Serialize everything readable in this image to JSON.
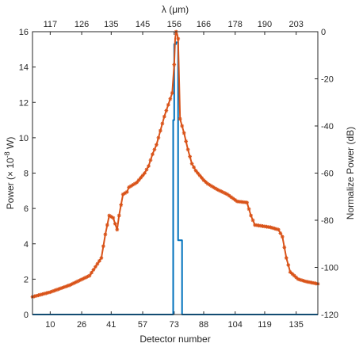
{
  "chart_data": {
    "type": "line",
    "title": "",
    "xlabel": "Detector number",
    "ylabel_left_text": "Power (× 10",
    "ylabel_left_sup": "-8",
    "ylabel_left_unit": " W)",
    "ylabel_right": "Normalize Power (dB)",
    "xlabel_top": "λ (μm)",
    "xlim": [
      1,
      146
    ],
    "ylim_left": [
      0,
      16
    ],
    "ylim_right": [
      -120,
      0
    ],
    "xticks": [
      "10",
      "26",
      "41",
      "57",
      "73",
      "88",
      "104",
      "119",
      "135"
    ],
    "xticks_values": [
      10,
      26,
      41,
      57,
      73,
      88,
      104,
      119,
      135
    ],
    "top_ticks": [
      "117",
      "126",
      "135",
      "145",
      "156",
      "166",
      "178",
      "190",
      "203"
    ],
    "yticks_left": [
      "0",
      "2",
      "4",
      "6",
      "8",
      "10",
      "12",
      "14",
      "16"
    ],
    "yticks_left_values": [
      0,
      2,
      4,
      6,
      8,
      10,
      12,
      14,
      16
    ],
    "yticks_right": [
      "-120",
      "-100",
      "-80",
      "-60",
      "-40",
      "-20",
      "0"
    ],
    "yticks_right_values": [
      -120,
      -100,
      -80,
      -60,
      -40,
      -20,
      0
    ],
    "colors": {
      "linear": "#0072BD",
      "db": "#D95319",
      "axis": "#262626"
    },
    "series": [
      {
        "axis": "left",
        "x": [
          1,
          72,
          72.5,
          73,
          74,
          75,
          76,
          77,
          78,
          146
        ],
        "y": [
          0.0,
          0.0,
          11.0,
          15.3,
          15.4,
          4.2,
          4.2,
          0.0,
          0.0,
          0.0
        ]
      },
      {
        "axis": "right",
        "x": [
          1,
          10,
          20,
          30,
          36,
          38,
          40,
          42,
          44,
          45,
          47,
          49,
          50,
          52,
          54,
          56,
          58,
          60,
          62,
          64,
          66,
          68,
          70,
          72,
          73,
          73.5,
          74,
          74.5,
          75,
          76,
          77,
          78,
          80,
          82,
          84,
          86,
          88,
          90,
          95,
          100,
          105,
          110,
          112,
          114,
          118,
          122,
          126,
          128,
          130,
          132,
          136,
          140,
          146
        ],
        "y": [
          -112.5,
          -110.5,
          -107.5,
          -103.5,
          -96,
          -86,
          -78,
          -79,
          -84,
          -78,
          -69,
          -68,
          -66,
          -65,
          -64,
          -62,
          -60,
          -57,
          -52,
          -48,
          -42,
          -36,
          -31,
          -26,
          -14,
          -3,
          0,
          -1,
          -3,
          -37,
          -40,
          -43,
          -50,
          -56,
          -59,
          -61,
          -63,
          -64.5,
          -67,
          -69,
          -72,
          -72.5,
          -78,
          -82,
          -82.5,
          -83,
          -84,
          -87,
          -96,
          -102,
          -105,
          -106,
          -107
        ]
      }
    ]
  }
}
